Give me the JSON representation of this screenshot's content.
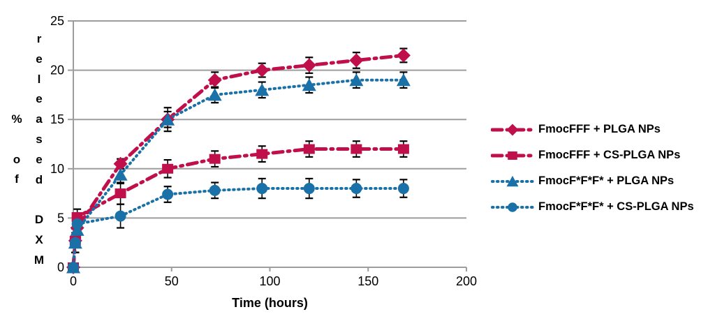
{
  "figure": {
    "background": "#FFFFFF",
    "axis_color": "#9D9D9D",
    "error_bar_color": "#000000",
    "red_accent": "#C0104C",
    "blue_accent": "#1A71A8"
  },
  "chart_data": {
    "type": "line",
    "title": "",
    "xlabel": "Time (hours)",
    "ylabel": "% of released DXM",
    "ylabel_columns": [
      "% of",
      "released DXM"
    ],
    "x_ticks": [
      0,
      50,
      100,
      150,
      200
    ],
    "y_ticks": [
      0,
      5,
      10,
      15,
      20,
      25
    ],
    "xlim": [
      0,
      200
    ],
    "ylim": [
      0,
      25
    ],
    "grid": true,
    "legend_position": "right",
    "x": [
      0,
      1,
      2,
      24,
      48,
      72,
      96,
      120,
      144,
      168
    ],
    "series": [
      {
        "name": "FmocFFF + PLGA NPs",
        "color": "#C0104C",
        "marker": "diamond",
        "line_style": "dashdot",
        "values": [
          0,
          2.7,
          4.0,
          10.5,
          15.0,
          19.0,
          20.0,
          20.5,
          21.0,
          21.5
        ],
        "error": [
          0,
          1.2,
          0.8,
          0.5,
          0.8,
          0.8,
          0.7,
          0.8,
          0.8,
          0.7
        ]
      },
      {
        "name": "FmocFFF + CS-PLGA NPs",
        "color": "#C0104C",
        "marker": "square",
        "line_style": "dashdot",
        "values": [
          0,
          2.7,
          5.1,
          7.5,
          10.0,
          11.0,
          11.5,
          12.0,
          12.0,
          12.0
        ],
        "error": [
          0,
          1.2,
          0.8,
          1.1,
          0.9,
          0.8,
          0.8,
          0.8,
          0.8,
          0.8
        ]
      },
      {
        "name": "FmocF*F*F* + PLGA NPs",
        "color": "#1A71A8",
        "marker": "triangle",
        "line_style": "dotted",
        "values": [
          0,
          2.5,
          3.8,
          9.4,
          15.0,
          17.5,
          18.0,
          18.5,
          19.0,
          19.0
        ],
        "error": [
          0,
          1.0,
          0.8,
          0.9,
          1.2,
          0.8,
          0.8,
          0.8,
          0.8,
          0.8
        ]
      },
      {
        "name": "FmocF*F*F* + CS-PLGA NPs",
        "color": "#1A71A8",
        "marker": "circle",
        "line_style": "dotted",
        "values": [
          0,
          2.5,
          4.4,
          5.2,
          7.4,
          7.8,
          8.0,
          8.0,
          8.0,
          8.0
        ],
        "error": [
          0,
          1.0,
          0.8,
          1.2,
          0.8,
          0.8,
          1.0,
          1.0,
          0.9,
          0.9
        ]
      }
    ]
  }
}
